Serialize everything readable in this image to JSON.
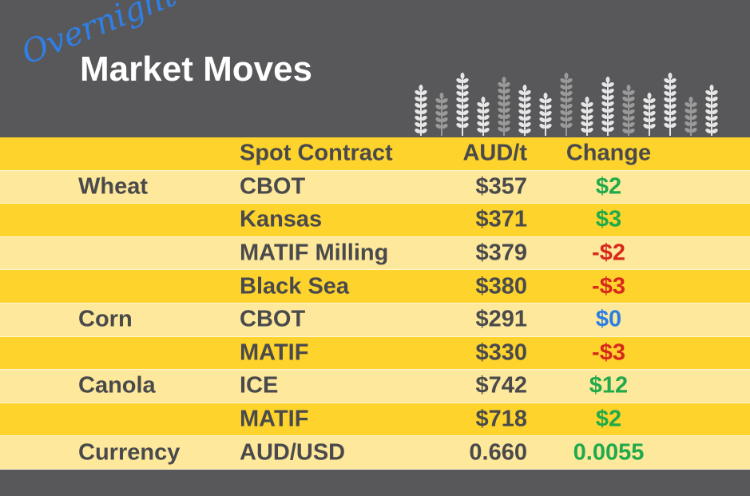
{
  "header": {
    "subtitle": "Overnight",
    "title": "Market Moves"
  },
  "table": {
    "columns": [
      "Spot Contract",
      "AUD/t",
      "Change"
    ],
    "rows": [
      {
        "commodity": "Wheat",
        "contract": "CBOT",
        "price": "$357",
        "change": "$2",
        "change_color": "#1faa4b"
      },
      {
        "contract": "Kansas",
        "price": "$371",
        "change": "$3",
        "change_color": "#1faa4b"
      },
      {
        "contract": "MATIF Milling",
        "price": "$379",
        "change": "-$2",
        "change_color": "#d8281c"
      },
      {
        "contract": "Black Sea",
        "price": "$380",
        "change": "-$3",
        "change_color": "#d8281c"
      },
      {
        "commodity": "Corn",
        "contract": "CBOT",
        "price": "$291",
        "change": "$0",
        "change_color": "#2a7de6"
      },
      {
        "contract": "MATIF",
        "price": "$330",
        "change": "-$3",
        "change_color": "#d8281c"
      },
      {
        "commodity": "Canola",
        "contract": "ICE",
        "price": "$742",
        "change": "$12",
        "change_color": "#1faa4b"
      },
      {
        "contract": "MATIF",
        "price": "$718",
        "change": "$2",
        "change_color": "#1faa4b"
      },
      {
        "commodity": "Currency",
        "contract": "AUD/USD",
        "price": "0.660",
        "change": "0.0055",
        "change_color": "#1faa4b"
      }
    ]
  }
}
